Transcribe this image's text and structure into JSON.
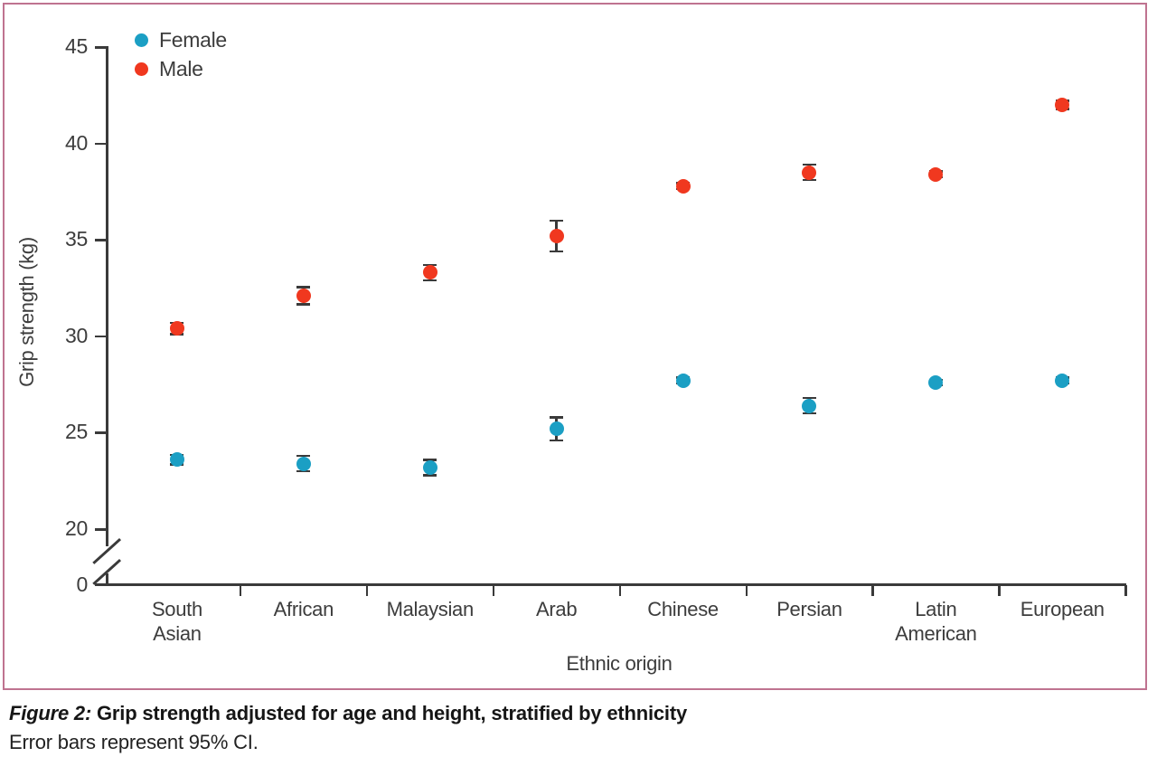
{
  "figure": {
    "border_color": "#bf7390"
  },
  "legend": {
    "items": [
      {
        "label": "Female",
        "color": "#1b9fc4"
      },
      {
        "label": "Male",
        "color": "#f0381f"
      }
    ]
  },
  "chart_data": {
    "type": "scatter",
    "title": "",
    "xlabel": "Ethnic origin",
    "ylabel": "Grip strength (kg)",
    "categories": [
      "South Asian",
      "African",
      "Malaysian",
      "Arab",
      "Chinese",
      "Persian",
      "Latin American",
      "European"
    ],
    "series": [
      {
        "name": "Female",
        "color": "#1b9fc4",
        "values": [
          23.6,
          23.4,
          23.2,
          25.2,
          27.7,
          26.4,
          27.6,
          27.7
        ],
        "ci_half_width": [
          0.25,
          0.4,
          0.4,
          0.6,
          0.15,
          0.4,
          0.15,
          0.15
        ]
      },
      {
        "name": "Male",
        "color": "#f0381f",
        "values": [
          30.4,
          32.1,
          33.3,
          35.2,
          37.8,
          38.5,
          38.4,
          42.0
        ],
        "ci_half_width": [
          0.3,
          0.45,
          0.4,
          0.8,
          0.15,
          0.4,
          0.15,
          0.2
        ]
      }
    ],
    "yticks_main": [
      20,
      25,
      30,
      35,
      40,
      45
    ],
    "ytick_zero": 0,
    "ylim_main": [
      20,
      45
    ],
    "axis_break": true,
    "grid": false,
    "legend_position": "top-left",
    "error_bars": "95% CI"
  },
  "caption": {
    "label": "Figure 2:",
    "title": " Grip strength adjusted for age and height, stratified by ethnicity",
    "note": "Error bars represent 95% CI."
  }
}
